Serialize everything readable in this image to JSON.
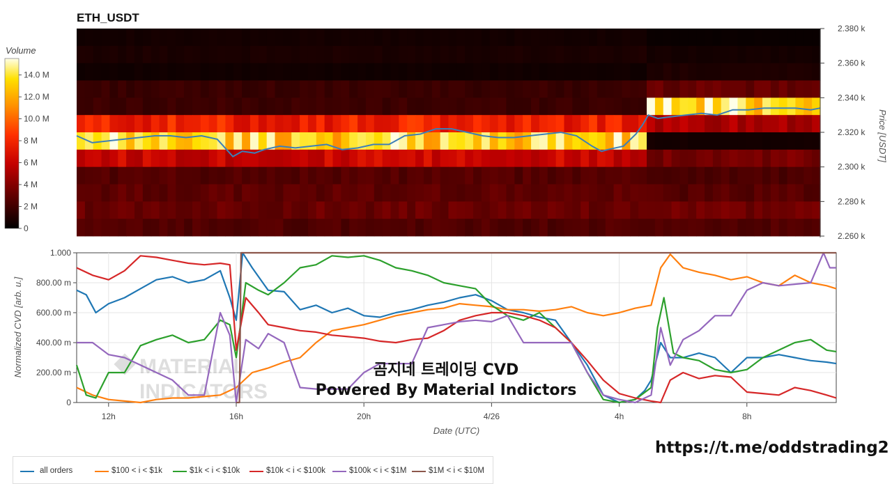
{
  "title": "ETH_USDT",
  "watermark_line1": "MATERIAL",
  "watermark_line2": "INDICATORS",
  "overlay": {
    "line1": "곰지네 트레이딩 CVD",
    "line2": "Powered By Material Indictors"
  },
  "url": "https://t.me/oddstrading2",
  "colors": {
    "all_orders": "#1f77b4",
    "b100_1k": "#ff7f0e",
    "b1k_10k": "#2ca02c",
    "b10k_100k": "#d62728",
    "b100k_1m": "#9467bd",
    "b1m_10m": "#8c564b",
    "price_line": "#3d7fb8"
  },
  "chart_data": [
    {
      "type": "heatmap",
      "colorbar": {
        "title": "Volume",
        "ticks": [
          "14.0 M",
          "12.0 M",
          "10.0 M",
          "8 M",
          "6 M",
          "4 M",
          "2 M",
          "0"
        ],
        "tick_values": [
          14,
          12,
          10,
          8,
          6,
          4,
          2,
          0
        ],
        "range": [
          0,
          15.5
        ]
      },
      "yaxis": {
        "label": "Price [USDT]",
        "ticks": [
          "2.380 k",
          "2.360 k",
          "2.340 k",
          "2.320 k",
          "2.300 k",
          "2.280 k",
          "2.260 k"
        ],
        "tick_values": [
          2380,
          2360,
          2340,
          2320,
          2300,
          2280,
          2260
        ],
        "range": [
          2259.2,
          2379.6
        ]
      },
      "price_bands": [
        2375,
        2365,
        2355,
        2345,
        2335,
        2325,
        2315,
        2305,
        2295,
        2285,
        2275,
        2265
      ],
      "profile": [
        {
          "pre": 0.6,
          "post": 0.3
        },
        {
          "pre": 0.8,
          "post": 0.6
        },
        {
          "pre": 0.5,
          "post": 0.9
        },
        {
          "pre": 1.7,
          "post": 3.0
        },
        {
          "pre": 1.8,
          "post": 13.5
        },
        {
          "pre": 7.5,
          "post": 5.0
        },
        {
          "pre": 13.0,
          "post": 0.6
        },
        {
          "pre": 6.0,
          "post": 3.5
        },
        {
          "pre": 2.5,
          "post": 2.3
        },
        {
          "pre": 2.8,
          "post": 2.6
        },
        {
          "pre": 3.1,
          "post": 3.3
        },
        {
          "pre": 2.4,
          "post": 2.4
        }
      ],
      "price_series": {
        "name": "ETH_USDT",
        "x_hours": [
          11.0,
          11.5,
          12.0,
          12.5,
          13.0,
          13.5,
          14.0,
          14.5,
          15.0,
          15.5,
          15.8,
          16.0,
          16.3,
          16.7,
          17.0,
          17.5,
          18.0,
          18.5,
          19.0,
          19.5,
          20.0,
          20.5,
          21.0,
          21.5,
          22.0,
          22.5,
          23.0,
          23.5,
          24.0,
          24.5,
          25.0,
          25.5,
          26.0,
          26.5,
          27.0,
          27.5,
          27.8,
          28.0,
          28.5,
          28.9,
          29.1,
          29.3,
          29.6,
          30.0,
          30.5,
          31.0,
          31.5,
          32.0,
          32.5,
          33.0,
          33.5,
          34.0,
          34.5,
          34.8
        ],
        "values": [
          2318,
          2314,
          2315,
          2316,
          2317,
          2318,
          2318,
          2317,
          2318,
          2316,
          2310,
          2306,
          2309,
          2308,
          2310,
          2312,
          2311,
          2312,
          2313,
          2310,
          2311,
          2313,
          2313,
          2318,
          2319,
          2322,
          2322,
          2320,
          2318,
          2317,
          2317,
          2318,
          2319,
          2320,
          2318,
          2312,
          2309,
          2310,
          2312,
          2319,
          2324,
          2330,
          2328,
          2329,
          2330,
          2331,
          2330,
          2333,
          2333,
          2334,
          2334,
          2334,
          2333,
          2334
        ]
      }
    },
    {
      "type": "line",
      "xlabel": "Date (UTC)",
      "ylabel": "Normalized CVD [arb. u.]",
      "x_ticks": [
        "12h",
        "16h",
        "20h",
        "4/26",
        "4h",
        "8h"
      ],
      "x_tick_hours": [
        12,
        16,
        20,
        24,
        28,
        32
      ],
      "x_range_hours": [
        11.0,
        34.8
      ],
      "y_ticks": [
        "1.000",
        "800.00 m",
        "600.00 m",
        "400.00 m",
        "200.00 m",
        "0"
      ],
      "y_tick_values": [
        1.0,
        0.8,
        0.6,
        0.4,
        0.2,
        0
      ],
      "ylim": [
        0,
        1.0
      ],
      "series": [
        {
          "name": "all orders",
          "color_key": "all_orders",
          "x": [
            11.0,
            11.3,
            11.6,
            12.0,
            12.5,
            13.0,
            13.5,
            14.0,
            14.5,
            15.0,
            15.5,
            15.8,
            16.0,
            16.2,
            16.5,
            17.0,
            17.5,
            18.0,
            18.5,
            19.0,
            19.5,
            20.0,
            20.5,
            21.0,
            21.5,
            22.0,
            22.5,
            23.0,
            23.5,
            24.0,
            24.5,
            25.0,
            25.5,
            26.0,
            26.5,
            27.0,
            27.5,
            28.0,
            28.5,
            28.8,
            29.0,
            29.3,
            29.6,
            30.0,
            30.5,
            31.0,
            31.5,
            32.0,
            32.5,
            33.0,
            33.5,
            34.0,
            34.5,
            34.8
          ],
          "values": [
            0.75,
            0.72,
            0.6,
            0.66,
            0.7,
            0.76,
            0.82,
            0.84,
            0.8,
            0.82,
            0.88,
            0.7,
            0.55,
            1.0,
            0.9,
            0.75,
            0.74,
            0.62,
            0.65,
            0.6,
            0.63,
            0.58,
            0.57,
            0.6,
            0.62,
            0.65,
            0.67,
            0.7,
            0.72,
            0.68,
            0.62,
            0.6,
            0.57,
            0.55,
            0.4,
            0.25,
            0.05,
            0.0,
            0.02,
            0.08,
            0.15,
            0.4,
            0.3,
            0.3,
            0.33,
            0.3,
            0.2,
            0.3,
            0.3,
            0.32,
            0.3,
            0.28,
            0.27,
            0.26
          ]
        },
        {
          "name": "$100 < i < $1k",
          "color_key": "b100_1k",
          "x": [
            11.0,
            11.5,
            12.0,
            12.5,
            13.0,
            13.5,
            14.0,
            14.5,
            15.0,
            15.5,
            16.0,
            16.5,
            17.0,
            17.5,
            18.0,
            18.5,
            19.0,
            19.5,
            20.0,
            20.5,
            21.0,
            21.5,
            22.0,
            22.5,
            23.0,
            23.5,
            24.0,
            24.5,
            25.0,
            25.5,
            26.0,
            26.5,
            27.0,
            27.5,
            28.0,
            28.5,
            29.0,
            29.3,
            29.6,
            30.0,
            30.5,
            31.0,
            31.5,
            32.0,
            32.5,
            33.0,
            33.5,
            34.0,
            34.5,
            34.8
          ],
          "values": [
            0.1,
            0.05,
            0.02,
            0.01,
            0.0,
            0.02,
            0.03,
            0.03,
            0.04,
            0.05,
            0.1,
            0.2,
            0.23,
            0.27,
            0.3,
            0.4,
            0.48,
            0.5,
            0.52,
            0.55,
            0.58,
            0.6,
            0.62,
            0.63,
            0.66,
            0.65,
            0.64,
            0.62,
            0.62,
            0.61,
            0.62,
            0.64,
            0.6,
            0.58,
            0.6,
            0.63,
            0.65,
            0.9,
            0.99,
            0.9,
            0.87,
            0.85,
            0.82,
            0.84,
            0.8,
            0.78,
            0.85,
            0.8,
            0.78,
            0.76
          ]
        },
        {
          "name": "$1k < i < $10k",
          "color_key": "b1k_10k",
          "x": [
            11.0,
            11.3,
            11.6,
            12.0,
            12.5,
            13.0,
            13.5,
            14.0,
            14.5,
            15.0,
            15.5,
            15.8,
            16.0,
            16.3,
            16.7,
            17.0,
            17.5,
            18.0,
            18.5,
            19.0,
            19.5,
            20.0,
            20.5,
            21.0,
            21.5,
            22.0,
            22.5,
            23.0,
            23.5,
            24.0,
            24.5,
            25.0,
            25.5,
            26.0,
            26.5,
            27.0,
            27.5,
            28.0,
            28.5,
            29.0,
            29.2,
            29.4,
            29.7,
            30.0,
            30.5,
            31.0,
            31.5,
            32.0,
            32.5,
            33.0,
            33.5,
            34.0,
            34.5,
            34.8
          ],
          "values": [
            0.25,
            0.05,
            0.03,
            0.2,
            0.2,
            0.38,
            0.42,
            0.45,
            0.4,
            0.42,
            0.55,
            0.52,
            0.3,
            0.8,
            0.75,
            0.72,
            0.8,
            0.9,
            0.92,
            0.98,
            0.97,
            0.98,
            0.95,
            0.9,
            0.88,
            0.85,
            0.8,
            0.78,
            0.76,
            0.65,
            0.58,
            0.55,
            0.6,
            0.5,
            0.4,
            0.2,
            0.02,
            0.0,
            0.02,
            0.1,
            0.5,
            0.7,
            0.33,
            0.3,
            0.28,
            0.22,
            0.2,
            0.22,
            0.3,
            0.35,
            0.4,
            0.42,
            0.35,
            0.34
          ]
        },
        {
          "name": "$10k < i < $100k",
          "color_key": "b10k_100k",
          "x": [
            11.0,
            11.5,
            12.0,
            12.5,
            13.0,
            13.5,
            14.0,
            14.5,
            15.0,
            15.5,
            15.8,
            16.0,
            16.3,
            16.7,
            17.0,
            17.5,
            18.0,
            18.5,
            19.0,
            19.5,
            20.0,
            20.5,
            21.0,
            21.5,
            22.0,
            22.5,
            23.0,
            23.5,
            24.0,
            24.5,
            25.0,
            25.5,
            26.0,
            26.5,
            27.0,
            27.5,
            28.0,
            28.5,
            29.0,
            29.3,
            29.6,
            30.0,
            30.5,
            31.0,
            31.5,
            32.0,
            32.5,
            33.0,
            33.5,
            34.0,
            34.5,
            34.8
          ],
          "values": [
            0.9,
            0.85,
            0.82,
            0.88,
            0.98,
            0.97,
            0.95,
            0.93,
            0.92,
            0.93,
            0.92,
            0.35,
            0.7,
            0.6,
            0.52,
            0.5,
            0.48,
            0.47,
            0.45,
            0.44,
            0.43,
            0.41,
            0.4,
            0.42,
            0.43,
            0.48,
            0.55,
            0.58,
            0.6,
            0.6,
            0.58,
            0.55,
            0.5,
            0.4,
            0.28,
            0.15,
            0.06,
            0.03,
            0.01,
            0.0,
            0.15,
            0.2,
            0.16,
            0.18,
            0.17,
            0.07,
            0.06,
            0.05,
            0.1,
            0.08,
            0.05,
            0.03
          ]
        },
        {
          "name": "$100k < i < $1M",
          "color_key": "b100k_1m",
          "x": [
            11.0,
            11.5,
            12.0,
            12.5,
            13.0,
            13.5,
            14.0,
            14.5,
            15.0,
            15.5,
            15.8,
            16.0,
            16.3,
            16.7,
            17.0,
            17.5,
            18.0,
            18.5,
            19.0,
            19.5,
            20.0,
            20.5,
            21.0,
            21.5,
            22.0,
            22.5,
            23.0,
            23.5,
            24.0,
            24.5,
            25.0,
            25.5,
            26.0,
            26.5,
            27.0,
            27.5,
            28.0,
            28.5,
            29.0,
            29.3,
            29.6,
            30.0,
            30.5,
            31.0,
            31.5,
            32.0,
            32.5,
            33.0,
            33.5,
            34.0,
            34.4,
            34.6,
            34.8
          ],
          "values": [
            0.4,
            0.4,
            0.32,
            0.3,
            0.25,
            0.2,
            0.15,
            0.05,
            0.05,
            0.6,
            0.45,
            0.0,
            0.42,
            0.36,
            0.46,
            0.4,
            0.1,
            0.09,
            0.09,
            0.09,
            0.2,
            0.26,
            0.26,
            0.26,
            0.5,
            0.52,
            0.54,
            0.55,
            0.54,
            0.58,
            0.4,
            0.4,
            0.4,
            0.4,
            0.2,
            0.05,
            0.02,
            0.0,
            0.05,
            0.5,
            0.25,
            0.42,
            0.48,
            0.58,
            0.58,
            0.75,
            0.8,
            0.78,
            0.79,
            0.8,
            1.0,
            0.9,
            0.9
          ]
        },
        {
          "name": "$1M < i < $10M",
          "color_key": "b1m_10m",
          "x": [
            16.0,
            16.1,
            16.15,
            34.8
          ],
          "values": [
            0.0,
            0.0,
            1.0,
            1.0
          ]
        }
      ]
    }
  ]
}
